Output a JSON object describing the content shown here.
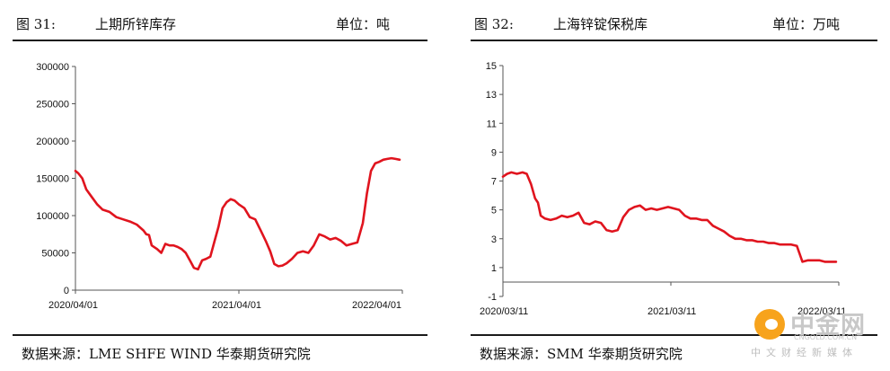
{
  "panels": [
    {
      "fig_no": "图 31:",
      "title": "上期所锌库存",
      "unit": "单位：吨",
      "source": "数据来源：LME SHFE WIND  华泰期货研究院"
    },
    {
      "fig_no": "图 32:",
      "title": "上海锌锭保税库",
      "unit": "单位：万吨",
      "source": "数据来源：SMM  华泰期货研究院"
    }
  ],
  "watermark": {
    "brand": "中金网",
    "url": "CNGOLD.COM.CN",
    "tagline": "中文财经新媒体"
  },
  "colors": {
    "line": "#e0141e",
    "axis": "#555555"
  },
  "chart_data": [
    {
      "type": "line",
      "ylim": [
        0,
        300000
      ],
      "yticks": [
        "0",
        "50000",
        "100000",
        "150000",
        "200000",
        "250000",
        "300000"
      ],
      "xlim": [
        0,
        24
      ],
      "xticks": [
        {
          "label": "2020/04/01",
          "x": 0
        },
        {
          "label": "2021/04/01",
          "x": 12
        },
        {
          "label": "2022/04/01",
          "x": 24
        }
      ],
      "series": [
        {
          "x": [
            0,
            0.2,
            0.5,
            0.8,
            1.2,
            1.6,
            2.0,
            2.5,
            3.0,
            3.5,
            4.0,
            4.5,
            5.0,
            5.2,
            5.4,
            5.6,
            6.0,
            6.3,
            6.6,
            6.9,
            7.2,
            7.5,
            7.8,
            8.1,
            8.4,
            8.7,
            9.0,
            9.3,
            9.6,
            9.9,
            10.2,
            10.5,
            10.8,
            11.1,
            11.4,
            11.7,
            12.0,
            12.4,
            12.8,
            13.2,
            13.6,
            14.0,
            14.3,
            14.6,
            14.9,
            15.2,
            15.5,
            15.9,
            16.3,
            16.7,
            17.1,
            17.5,
            17.9,
            18.3,
            18.7,
            19.1,
            19.5,
            19.9,
            20.3,
            20.7,
            21.1,
            21.4,
            21.7,
            22.0,
            22.3,
            22.6,
            22.9,
            23.2,
            23.5,
            23.8
          ],
          "y": [
            160000,
            157000,
            150000,
            135000,
            125000,
            115000,
            108000,
            105000,
            98000,
            95000,
            92000,
            88000,
            80000,
            75000,
            74000,
            60000,
            55000,
            50000,
            62000,
            60000,
            60000,
            58000,
            55000,
            50000,
            40000,
            30000,
            28000,
            40000,
            42000,
            45000,
            65000,
            85000,
            110000,
            118000,
            122000,
            120000,
            115000,
            110000,
            98000,
            95000,
            80000,
            65000,
            52000,
            35000,
            32000,
            33000,
            36000,
            42000,
            50000,
            52000,
            50000,
            60000,
            75000,
            72000,
            68000,
            70000,
            66000,
            60000,
            62000,
            64000,
            90000,
            130000,
            160000,
            170000,
            172000,
            175000,
            176000,
            177000,
            176000,
            175000
          ]
        }
      ]
    },
    {
      "type": "line",
      "ylim": [
        -1,
        15
      ],
      "yticks": [
        "-1",
        "1",
        "3",
        "5",
        "7",
        "9",
        "11",
        "13",
        "15"
      ],
      "xlim": [
        0,
        24
      ],
      "xticks": [
        {
          "label": "2020/03/11",
          "x": 0
        },
        {
          "label": "2021/03/11",
          "x": 12
        },
        {
          "label": "2022/03/11",
          "x": 24
        }
      ],
      "series": [
        {
          "x": [
            0,
            0.3,
            0.6,
            1.0,
            1.4,
            1.7,
            2.0,
            2.3,
            2.5,
            2.7,
            3.0,
            3.4,
            3.8,
            4.2,
            4.6,
            5.0,
            5.4,
            5.8,
            6.2,
            6.6,
            7.0,
            7.4,
            7.8,
            8.2,
            8.6,
            9.0,
            9.4,
            9.8,
            10.2,
            10.6,
            11.0,
            11.4,
            11.8,
            12.2,
            12.6,
            13.0,
            13.4,
            13.8,
            14.2,
            14.6,
            15.0,
            15.4,
            15.8,
            16.2,
            16.6,
            17.0,
            17.4,
            17.8,
            18.2,
            18.6,
            19.0,
            19.4,
            19.8,
            20.2,
            20.6,
            21.0,
            21.4,
            21.8,
            22.2,
            22.6,
            23.0,
            23.4,
            23.8
          ],
          "y": [
            7.3,
            7.5,
            7.6,
            7.5,
            7.6,
            7.5,
            6.8,
            5.8,
            5.5,
            4.6,
            4.4,
            4.3,
            4.4,
            4.6,
            4.5,
            4.6,
            4.8,
            4.1,
            4.0,
            4.2,
            4.1,
            3.6,
            3.5,
            3.6,
            4.5,
            5.0,
            5.2,
            5.3,
            5.0,
            5.1,
            5.0,
            5.1,
            5.2,
            5.1,
            5.0,
            4.6,
            4.4,
            4.4,
            4.3,
            4.3,
            3.9,
            3.7,
            3.5,
            3.2,
            3.0,
            3.0,
            2.9,
            2.9,
            2.8,
            2.8,
            2.7,
            2.7,
            2.6,
            2.6,
            2.6,
            2.5,
            1.4,
            1.5,
            1.5,
            1.5,
            1.4,
            1.4,
            1.4
          ]
        }
      ]
    }
  ]
}
